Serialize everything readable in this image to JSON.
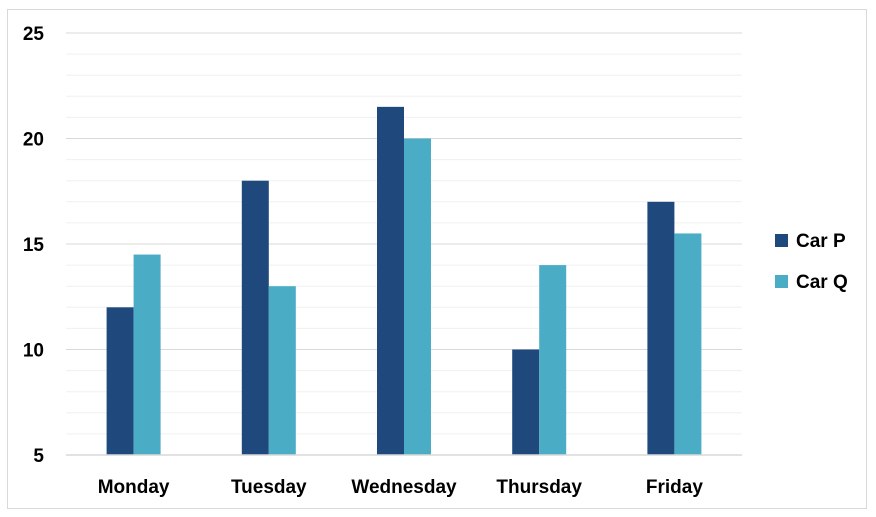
{
  "chart_data": {
    "type": "bar",
    "title": "",
    "xlabel": "",
    "ylabel": "",
    "categories": [
      "Monday",
      "Tuesday",
      "Wednesday",
      "Thursday",
      "Friday"
    ],
    "series": [
      {
        "name": "Car P",
        "color": "#1f497d",
        "values": [
          12,
          18,
          21.5,
          10,
          17
        ]
      },
      {
        "name": "Car Q",
        "color": "#4bacc6",
        "values": [
          14.5,
          13,
          20,
          14,
          15.5
        ]
      }
    ],
    "ylim": [
      5,
      25
    ],
    "yticks": [
      5,
      10,
      15,
      20,
      25
    ],
    "minor_gridline_step": 1,
    "grid": true,
    "legend_position": "right"
  }
}
